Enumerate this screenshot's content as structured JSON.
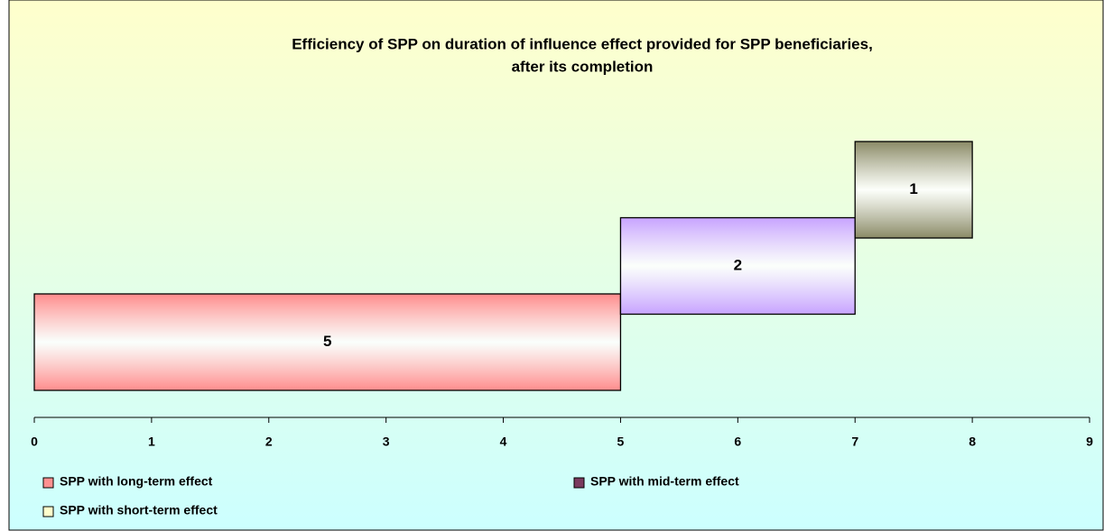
{
  "chart_data": {
    "type": "staircase-bar",
    "title": [
      "Efficiency of SPP on duration of influence effect provided for SPP beneficiaries,",
      "after its completion"
    ],
    "series": [
      {
        "name": "SPP with long-term effect",
        "color": "#ff8c8c",
        "legend_color": "#ff9090",
        "values": [
          5
        ]
      },
      {
        "name": "SPP with mid-term effect",
        "color": "#c7a3ff",
        "legend_color": "#7a3a5e",
        "values": [
          2
        ]
      },
      {
        "name": "SPP with short-term effect",
        "color": "#8a8a66",
        "legend_color": "#ffffcc",
        "values": [
          1
        ]
      }
    ],
    "xlim": [
      0,
      9
    ],
    "xticks": [
      0,
      1,
      2,
      3,
      4,
      5,
      6,
      7,
      8,
      9
    ]
  }
}
